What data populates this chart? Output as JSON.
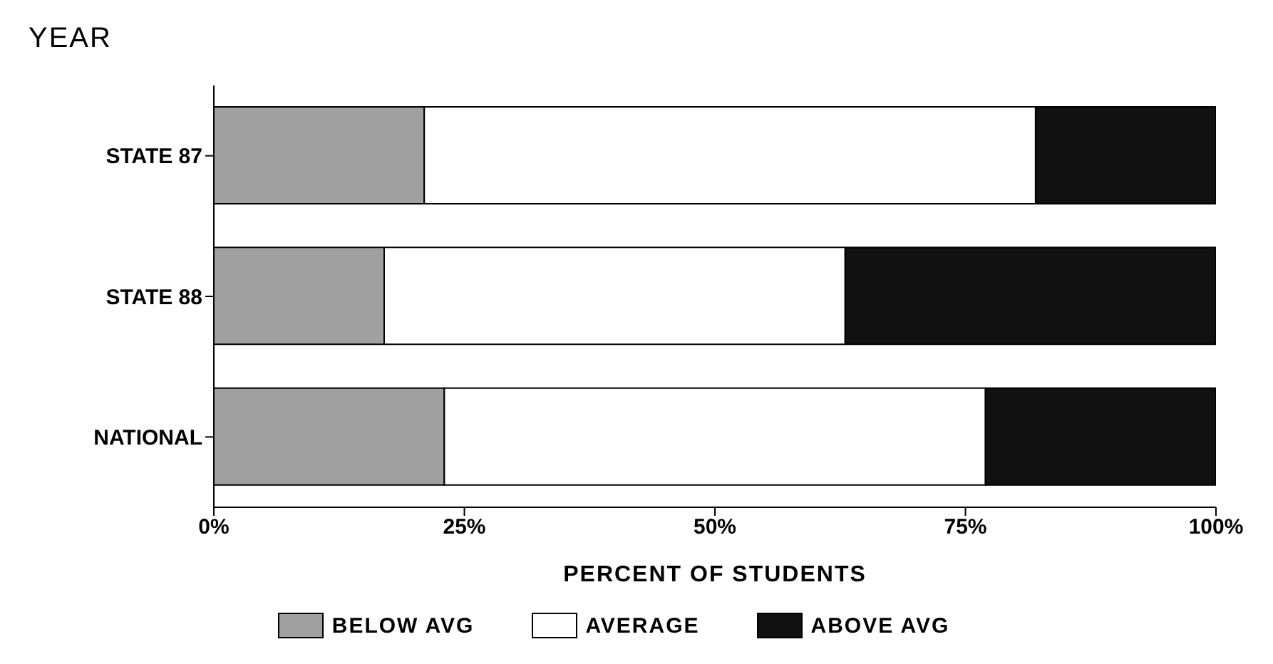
{
  "chart_data": {
    "type": "bar",
    "orientation": "horizontal",
    "stacked": true,
    "ylabel": "YEAR",
    "xlabel": "PERCENT OF STUDENTS",
    "categories": [
      "STATE 87",
      "STATE 88",
      "NATIONAL"
    ],
    "series": [
      {
        "name": "BELOW AVG",
        "color": "#a0a0a0",
        "values": [
          21,
          17,
          23
        ]
      },
      {
        "name": "AVERAGE",
        "color": "#ffffff",
        "values": [
          61,
          46,
          54
        ]
      },
      {
        "name": "ABOVE AVG",
        "color": "#111111",
        "values": [
          18,
          37,
          23
        ]
      }
    ],
    "xlim": [
      0,
      100
    ],
    "xticks": [
      {
        "value": 0,
        "label": "0%"
      },
      {
        "value": 25,
        "label": "25%"
      },
      {
        "value": 50,
        "label": "50%"
      },
      {
        "value": 75,
        "label": "75%"
      },
      {
        "value": 100,
        "label": "100%"
      }
    ],
    "legend": "bottom"
  }
}
